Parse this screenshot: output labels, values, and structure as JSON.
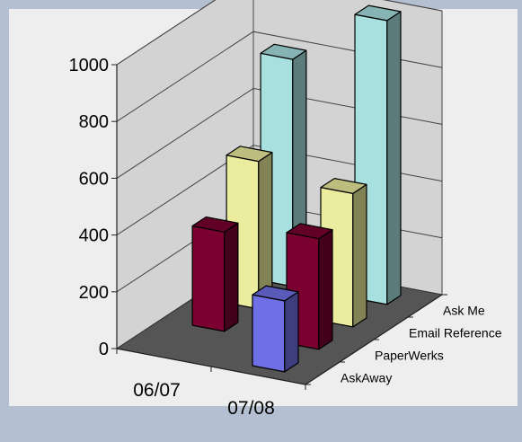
{
  "chart_data": {
    "type": "bar",
    "subtype": "3d-column",
    "title": "",
    "xlabel": "",
    "ylabel": "",
    "categories": [
      "06/07",
      "07/08"
    ],
    "series": [
      {
        "name": "AskAway",
        "values": [
          null,
          250
        ],
        "color": "#7070e6"
      },
      {
        "name": "PaperWerks",
        "values": [
          350,
          390
        ],
        "color": "#7a0030"
      },
      {
        "name": "Email Reference",
        "values": [
          520,
          470
        ],
        "color": "#ecec9e"
      },
      {
        "name": "Ask Me",
        "values": [
          800,
          1000
        ],
        "color": "#a8e0e0"
      }
    ],
    "ylim": [
      0,
      1000
    ],
    "yticks": [
      "0",
      "200",
      "400",
      "600",
      "800",
      "1000"
    ],
    "grid": true,
    "legend": "none",
    "depth_axis_labels": [
      "Ask Me",
      "Email Reference",
      "PaperWerks",
      "AskAway"
    ],
    "colors": {
      "plot_walls": "#d3d3d3",
      "floor": "#555555",
      "background_panel": "#eeeeee",
      "page_background": "#b4c0d2"
    }
  }
}
